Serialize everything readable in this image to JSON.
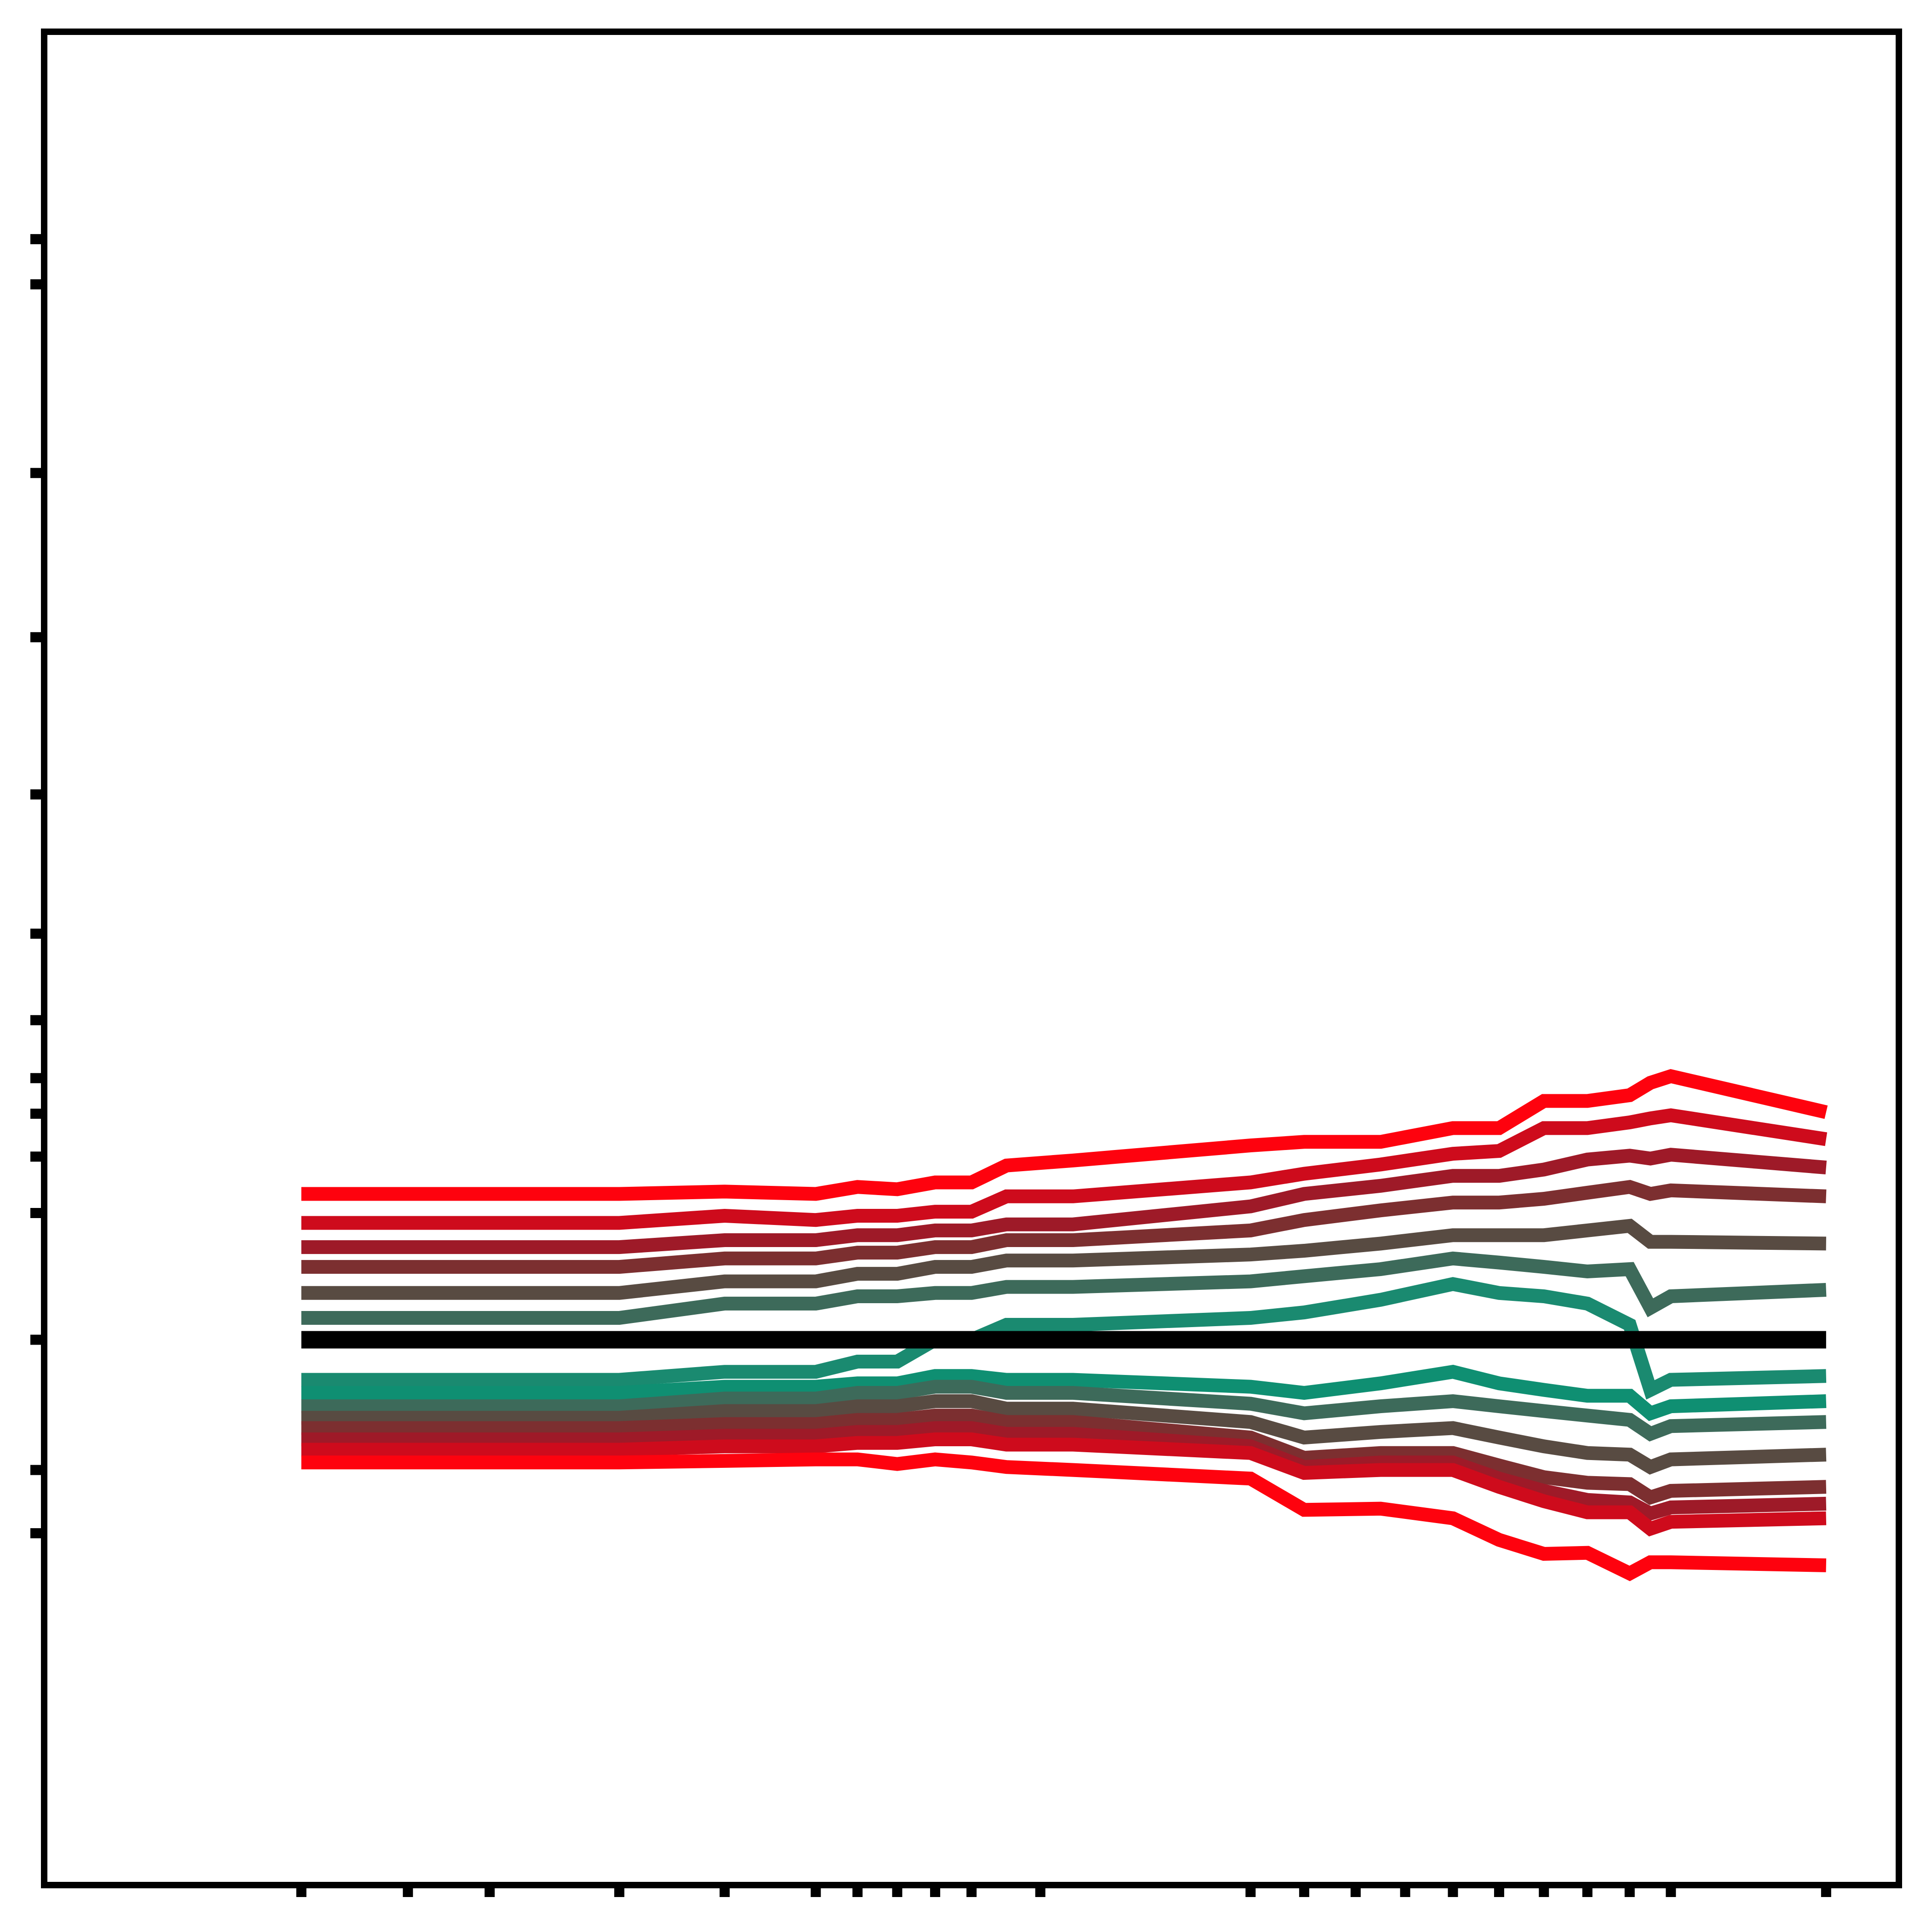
{
  "chart_data": {
    "type": "line",
    "title": "",
    "xlabel": "",
    "ylabel": "",
    "grid": false,
    "legend": "none",
    "x_ticks": [
      1,
      2,
      3,
      5,
      7,
      9,
      10,
      11,
      12,
      13,
      15,
      22,
      24,
      26,
      28,
      30,
      32,
      34,
      36,
      38,
      40,
      48
    ],
    "y_ticks": [
      0.9,
      0.95,
      1.0,
      1.05,
      1.1,
      1.15,
      1.2,
      1.3,
      1.5,
      2.0,
      3.0,
      5.0,
      10.0,
      12.0
    ],
    "ylim": [
      0.5,
      30
    ],
    "xlim": [
      0.0,
      52
    ],
    "x": [
      1,
      5,
      7,
      9,
      10,
      11,
      12,
      13,
      14,
      16,
      22,
      24,
      27,
      30,
      32,
      34,
      36,
      38,
      39,
      40,
      48
    ],
    "reference": {
      "name": "",
      "color": "#000000",
      "value": 1.0
    },
    "series": [
      {
        "color": "#fe020e",
        "values": [
          1.065,
          1.065,
          1.067,
          1.065,
          1.071,
          1.069,
          1.075,
          1.075,
          1.091,
          1.096,
          1.112,
          1.116,
          1.116,
          1.132,
          1.132,
          1.167,
          1.167,
          1.175,
          1.193,
          1.203,
          1.152
        ]
      },
      {
        "color": "#ce0b1c",
        "values": [
          1.043,
          1.043,
          1.048,
          1.045,
          1.048,
          1.048,
          1.051,
          1.051,
          1.063,
          1.063,
          1.075,
          1.083,
          1.092,
          1.103,
          1.106,
          1.132,
          1.132,
          1.139,
          1.144,
          1.148,
          1.119
        ]
      },
      {
        "color": "#9e1a28",
        "values": [
          1.028,
          1.028,
          1.032,
          1.032,
          1.035,
          1.035,
          1.038,
          1.038,
          1.042,
          1.042,
          1.055,
          1.065,
          1.072,
          1.081,
          1.081,
          1.087,
          1.097,
          1.101,
          1.098,
          1.102,
          1.089
        ]
      },
      {
        "color": "#7c2f30",
        "values": [
          1.018,
          1.018,
          1.022,
          1.022,
          1.025,
          1.025,
          1.028,
          1.028,
          1.032,
          1.032,
          1.038,
          1.045,
          1.052,
          1.058,
          1.058,
          1.061,
          1.066,
          1.071,
          1.065,
          1.068,
          1.063
        ]
      },
      {
        "color": "#584b42",
        "values": [
          1.008,
          1.008,
          1.012,
          1.012,
          1.015,
          1.015,
          1.018,
          1.018,
          1.021,
          1.021,
          1.024,
          1.026,
          1.03,
          1.035,
          1.035,
          1.035,
          1.038,
          1.041,
          1.031,
          1.031,
          1.03
        ]
      },
      {
        "color": "#3d6a5a",
        "values": [
          1.002,
          1.002,
          1.005,
          1.005,
          1.007,
          1.007,
          1.008,
          1.008,
          1.01,
          1.01,
          1.012,
          1.014,
          1.017,
          1.022,
          1.02,
          1.018,
          1.016,
          1.017,
          1.004,
          1.007,
          1.009
        ]
      },
      {
        "color": "#1a8a70",
        "values": [
          0.994,
          0.994,
          0.996,
          0.996,
          0.998,
          0.998,
          1.0,
          1.0,
          1.001,
          1.001,
          1.002,
          1.003,
          1.006,
          1.011,
          1.008,
          1.007,
          1.005,
          1.001,
          0.991,
          0.994,
          0.995
        ]
      },
      {
        "color": "#0f8f72",
        "values": [
          0.99,
          0.99,
          0.992,
          0.992,
          0.993,
          0.993,
          0.995,
          0.995,
          0.994,
          0.994,
          0.992,
          0.99,
          0.993,
          0.996,
          0.993,
          0.991,
          0.989,
          0.989,
          0.982,
          0.985,
          0.987
        ]
      },
      {
        "color": "#3d6a5a",
        "values": [
          0.985,
          0.985,
          0.988,
          0.988,
          0.99,
          0.99,
          0.992,
          0.992,
          0.99,
          0.99,
          0.986,
          0.982,
          0.985,
          0.987,
          0.985,
          0.983,
          0.981,
          0.979,
          0.972,
          0.976,
          0.978
        ]
      },
      {
        "color": "#584b42",
        "values": [
          0.98,
          0.98,
          0.983,
          0.983,
          0.985,
          0.985,
          0.987,
          0.987,
          0.984,
          0.984,
          0.978,
          0.97,
          0.973,
          0.975,
          0.97,
          0.965,
          0.961,
          0.96,
          0.952,
          0.957,
          0.96
        ]
      },
      {
        "color": "#7c2f30",
        "values": [
          0.975,
          0.975,
          0.977,
          0.977,
          0.979,
          0.979,
          0.981,
          0.981,
          0.978,
          0.978,
          0.97,
          0.958,
          0.961,
          0.961,
          0.953,
          0.945,
          0.941,
          0.94,
          0.93,
          0.935,
          0.938
        ]
      },
      {
        "color": "#9e1a28",
        "values": [
          0.969,
          0.969,
          0.971,
          0.971,
          0.973,
          0.973,
          0.975,
          0.975,
          0.972,
          0.972,
          0.965,
          0.952,
          0.955,
          0.955,
          0.944,
          0.935,
          0.928,
          0.926,
          0.917,
          0.922,
          0.925
        ]
      },
      {
        "color": "#ce0b1c",
        "values": [
          0.963,
          0.963,
          0.965,
          0.965,
          0.967,
          0.967,
          0.969,
          0.969,
          0.966,
          0.966,
          0.961,
          0.948,
          0.95,
          0.95,
          0.938,
          0.927,
          0.918,
          0.918,
          0.904,
          0.91,
          0.913
        ]
      },
      {
        "color": "#fe020e",
        "values": [
          0.955,
          0.955,
          0.956,
          0.957,
          0.957,
          0.954,
          0.957,
          0.955,
          0.952,
          0.95,
          0.944,
          0.92,
          0.921,
          0.913,
          0.894,
          0.881,
          0.882,
          0.862,
          0.873,
          0.873,
          0.87
        ]
      }
    ]
  }
}
